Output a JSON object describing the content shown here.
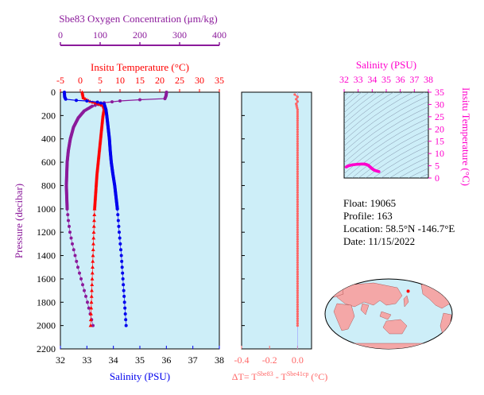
{
  "colors": {
    "panel_bg": "#cdeef8",
    "oxygen": "#8b1a9b",
    "temperature": "#ff0000",
    "salinity": "#0000ee",
    "delta": "#ff6666",
    "salinity_temp": "#ff00cc",
    "axis_navy": "#000080",
    "land": "#f4a7a7",
    "ocean": "#cdeef8",
    "track": "#ff0000"
  },
  "chart_data": [
    {
      "type": "line",
      "title": "",
      "ylabel": "Pressure (decibar)",
      "ylim": [
        0,
        2200
      ],
      "yticks": [
        "0",
        "200",
        "400",
        "600",
        "800",
        "1000",
        "1200",
        "1400",
        "1600",
        "1800",
        "2000",
        "2200"
      ],
      "grid": false,
      "axes": {
        "oxygen": {
          "label": "Sbe83 Oxygen Concentration (μm/kg)",
          "lim": [
            0,
            400
          ],
          "ticks": [
            "0",
            "100",
            "200",
            "300",
            "400"
          ]
        },
        "temperature": {
          "label": "Insitu Temperature (°C)",
          "lim": [
            -5,
            35
          ],
          "ticks": [
            "-5",
            "0",
            "5",
            "10",
            "15",
            "20",
            "25",
            "30",
            "35"
          ]
        },
        "salinity": {
          "label": "Salinity (PSU)",
          "lim": [
            32,
            38
          ],
          "ticks": [
            "32",
            "33",
            "34",
            "35",
            "36",
            "37",
            "38"
          ]
        }
      },
      "series": [
        {
          "axis": "oxygen",
          "points": [
            [
              267,
              0
            ],
            [
              266,
              30
            ],
            [
              263,
              55
            ],
            [
              200,
              65
            ],
            [
              150,
              75
            ],
            [
              110,
              90
            ],
            [
              80,
              120
            ],
            [
              60,
              160
            ],
            [
              45,
              220
            ],
            [
              33,
              300
            ],
            [
              25,
              400
            ],
            [
              20,
              500
            ],
            [
              17,
              600
            ],
            [
              16,
              700
            ],
            [
              15,
              800
            ],
            [
              16,
              900
            ],
            [
              17,
              1000
            ],
            [
              20,
              1100
            ],
            [
              24,
              1200
            ],
            [
              30,
              1300
            ],
            [
              37,
              1400
            ],
            [
              44,
              1500
            ],
            [
              52,
              1600
            ],
            [
              60,
              1700
            ],
            [
              68,
              1800
            ],
            [
              75,
              1900
            ],
            [
              82,
              2000
            ]
          ]
        },
        {
          "axis": "temperature",
          "points": [
            [
              0.5,
              0
            ],
            [
              0.6,
              20
            ],
            [
              0.8,
              50
            ],
            [
              2.5,
              80
            ],
            [
              4.5,
              100
            ],
            [
              5.8,
              120
            ],
            [
              6.0,
              140
            ],
            [
              5.7,
              200
            ],
            [
              5.4,
              300
            ],
            [
              5.1,
              400
            ],
            [
              4.8,
              500
            ],
            [
              4.5,
              600
            ],
            [
              4.2,
              700
            ],
            [
              4.0,
              800
            ],
            [
              3.8,
              900
            ],
            [
              3.6,
              1000
            ],
            [
              3.4,
              1200
            ],
            [
              3.2,
              1400
            ],
            [
              3.0,
              1600
            ],
            [
              2.8,
              1800
            ],
            [
              2.6,
              2000
            ]
          ]
        },
        {
          "axis": "salinity",
          "points": [
            [
              32.15,
              0
            ],
            [
              32.16,
              40
            ],
            [
              32.2,
              60
            ],
            [
              32.6,
              70
            ],
            [
              33.0,
              75
            ],
            [
              33.4,
              85
            ],
            [
              33.65,
              100
            ],
            [
              33.72,
              150
            ],
            [
              33.75,
              200
            ],
            [
              33.8,
              300
            ],
            [
              33.85,
              400
            ],
            [
              33.88,
              500
            ],
            [
              33.92,
              600
            ],
            [
              33.98,
              700
            ],
            [
              34.05,
              800
            ],
            [
              34.1,
              900
            ],
            [
              34.15,
              1000
            ],
            [
              34.22,
              1200
            ],
            [
              34.3,
              1400
            ],
            [
              34.36,
              1600
            ],
            [
              34.42,
              1800
            ],
            [
              34.48,
              2000
            ]
          ]
        }
      ]
    },
    {
      "type": "line",
      "title": "",
      "xlabel": "ΔT= T^Sbe83 - T^Sbe41cp (°C)",
      "xlabel_parts": {
        "prefix": "ΔT= T",
        "sup1": "Sbe83",
        "mid": " - T",
        "sup2": "Sbe41cp",
        "suffix": " (°C)"
      },
      "xlim": [
        -0.4,
        0.1
      ],
      "xticks": [
        "-0.4",
        "-0.2",
        "0.0"
      ],
      "ylim": [
        0,
        2200
      ],
      "series": [
        {
          "points": [
            [
              -0.02,
              20
            ],
            [
              0.0,
              40
            ],
            [
              -0.01,
              60
            ],
            [
              0.0,
              80
            ],
            [
              -0.01,
              100
            ],
            [
              0.0,
              150
            ],
            [
              0.0,
              300
            ],
            [
              0.0,
              500
            ],
            [
              0.0,
              700
            ],
            [
              0.0,
              900
            ],
            [
              0.0,
              1000
            ],
            [
              0.0,
              1100
            ],
            [
              0.0,
              1300
            ],
            [
              0.0,
              1500
            ],
            [
              0.0,
              1700
            ],
            [
              0.0,
              1900
            ],
            [
              0.0,
              2000
            ]
          ]
        }
      ]
    },
    {
      "type": "scatter",
      "title": "",
      "xlabel": "Salinity (PSU)",
      "ylabel": "Insitu Temperature (°C)",
      "xlim": [
        32,
        38
      ],
      "ylim": [
        0,
        35
      ],
      "xticks": [
        "32",
        "33",
        "34",
        "35",
        "36",
        "37",
        "38"
      ],
      "yticks": [
        "0",
        "5",
        "10",
        "15",
        "20",
        "25",
        "30",
        "35"
      ],
      "series": [
        {
          "points": [
            [
              32.15,
              4.5
            ],
            [
              32.3,
              5.0
            ],
            [
              32.6,
              5.4
            ],
            [
              32.9,
              5.6
            ],
            [
              33.2,
              5.7
            ],
            [
              33.45,
              5.7
            ],
            [
              33.6,
              5.5
            ],
            [
              33.72,
              5.2
            ],
            [
              33.8,
              4.8
            ],
            [
              33.88,
              4.4
            ],
            [
              33.95,
              4.0
            ],
            [
              34.05,
              3.6
            ],
            [
              34.15,
              3.2
            ],
            [
              34.3,
              2.9
            ],
            [
              34.48,
              2.6
            ]
          ]
        }
      ]
    }
  ],
  "info": {
    "float": "Float:  19065",
    "profile": "Profile:  163",
    "location": "Location:  58.5°N  -146.7°E",
    "date": "Date:  11/15/2022"
  },
  "map": {
    "float_position": {
      "lat": 58.5,
      "lon": -146.7
    }
  }
}
